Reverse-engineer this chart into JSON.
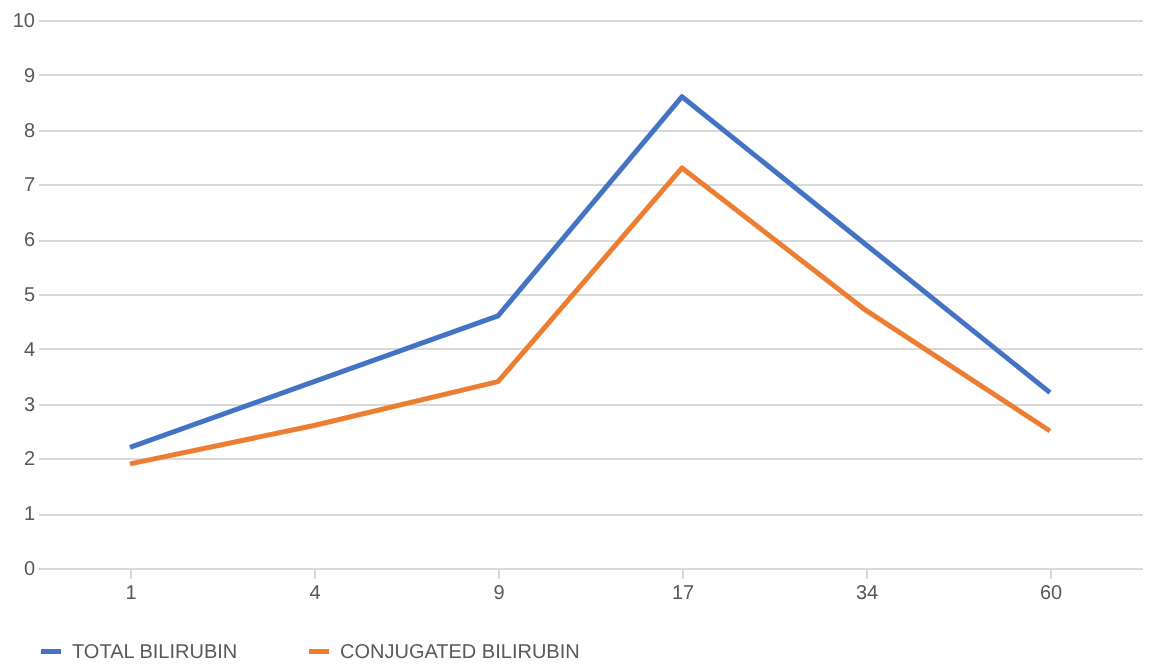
{
  "chart_data": {
    "type": "line",
    "categories": [
      "1",
      "4",
      "9",
      "17",
      "34",
      "60"
    ],
    "series": [
      {
        "name": "TOTAL BILIRUBIN",
        "color": "#4472c4",
        "values": [
          2.2,
          3.4,
          4.6,
          8.6,
          5.9,
          3.2
        ]
      },
      {
        "name": "CONJUGATED BILIRUBIN",
        "color": "#ed7d31",
        "values": [
          1.9,
          2.6,
          3.4,
          7.3,
          4.7,
          2.5
        ]
      }
    ],
    "ylim": [
      0,
      10
    ],
    "yticks": [
      0,
      1,
      2,
      3,
      4,
      5,
      6,
      7,
      8,
      9,
      10
    ],
    "grid": "y",
    "legend": "bottom",
    "marker": "none",
    "line_style": "solid"
  }
}
